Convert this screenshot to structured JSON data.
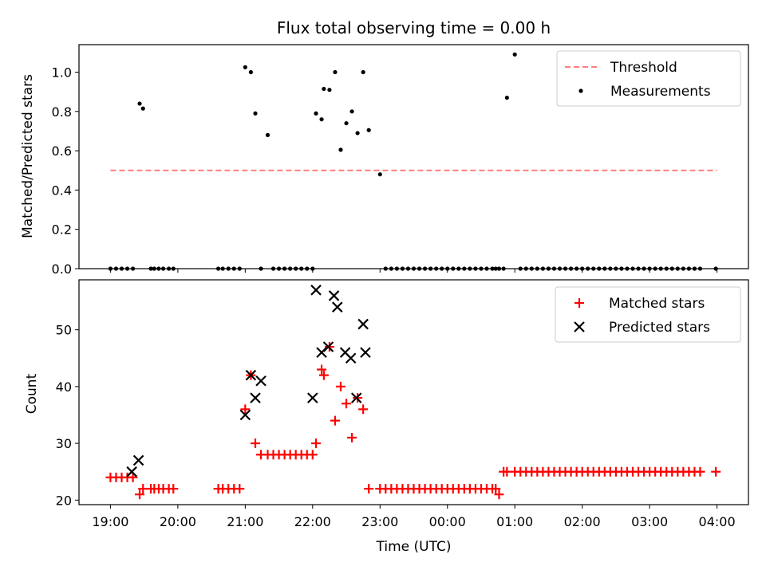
{
  "chart_data": [
    {
      "type": "scatter",
      "title": "Flux total observing time = 0.00 h",
      "xlabel": "",
      "ylabel": "Matched/Predicted stars",
      "ylim": [
        0,
        1.14
      ],
      "yticks": [
        "0.0",
        "0.2",
        "0.4",
        "0.6",
        "0.8",
        "1.0"
      ],
      "ytick_values": [
        0,
        0.2,
        0.4,
        0.6,
        0.8,
        1.0
      ],
      "legend_position": "top-right",
      "threshold": {
        "name": "Threshold",
        "value": 0.5,
        "x_start": 0,
        "x_end": 540,
        "color": "#ff7f7f"
      },
      "series": [
        {
          "name": "Measurements",
          "color": "#000000",
          "x": [
            0,
            5,
            10,
            15,
            20,
            26,
            29,
            36,
            39,
            43,
            47,
            52,
            56,
            96,
            100,
            105,
            110,
            115,
            120,
            125,
            129,
            134,
            140,
            145,
            150,
            155,
            160,
            165,
            170,
            175,
            180,
            183,
            188,
            190,
            195,
            200,
            205,
            210,
            215,
            220,
            225,
            230,
            240,
            245,
            250,
            255,
            260,
            265,
            270,
            275,
            280,
            285,
            290,
            295,
            300,
            305,
            310,
            315,
            320,
            325,
            330,
            335,
            340,
            343,
            346,
            350,
            353,
            360,
            365,
            370,
            375,
            380,
            385,
            390,
            395,
            400,
            405,
            410,
            415,
            420,
            425,
            430,
            435,
            440,
            445,
            450,
            455,
            460,
            465,
            470,
            475,
            480,
            485,
            490,
            495,
            500,
            505,
            510,
            515,
            520,
            525,
            539
          ],
          "y": [
            0,
            0,
            0,
            0,
            0,
            0.84,
            0.815,
            0,
            0,
            0,
            0,
            0,
            0,
            0,
            0,
            0,
            0,
            0,
            1.025,
            1.0,
            0.79,
            0,
            0.68,
            0,
            0,
            0,
            0,
            0,
            0,
            0,
            0,
            0.79,
            0.76,
            0.915,
            0.91,
            1.0,
            0.605,
            0.74,
            0.8,
            0.69,
            1.0,
            0.705,
            0.48,
            0,
            0,
            0,
            0,
            0,
            0,
            0,
            0,
            0,
            0,
            0,
            0,
            0,
            0,
            0,
            0,
            0,
            0,
            0,
            0,
            0,
            0,
            0,
            0.87,
            1.09,
            0,
            0,
            0,
            0,
            0,
            0,
            0,
            0,
            0,
            0,
            0,
            0,
            0,
            0,
            0,
            0,
            0,
            0,
            0,
            0,
            0,
            0,
            0,
            0,
            0,
            0,
            0,
            0,
            0,
            0,
            0,
            0,
            0,
            0
          ]
        }
      ]
    },
    {
      "type": "scatter",
      "title": "",
      "xlabel": "Time (UTC)",
      "ylabel": "Count",
      "ylim": [
        19.2,
        58.8
      ],
      "yticks": [
        "20",
        "30",
        "40",
        "50"
      ],
      "ytick_values": [
        20,
        30,
        40,
        50
      ],
      "xlim": [
        -28,
        568
      ],
      "xticks": [
        "19:00",
        "20:00",
        "21:00",
        "22:00",
        "23:00",
        "00:00",
        "01:00",
        "02:00",
        "03:00",
        "04:00"
      ],
      "xtick_values": [
        0,
        60,
        120,
        180,
        240,
        300,
        360,
        420,
        480,
        540
      ],
      "legend_position": "top-right",
      "series": [
        {
          "name": "Matched stars",
          "marker": "plus",
          "color": "#ff0000",
          "x": [
            0,
            5,
            10,
            15,
            20,
            26,
            29,
            36,
            39,
            43,
            47,
            52,
            56,
            96,
            100,
            105,
            110,
            115,
            120,
            125,
            129,
            134,
            140,
            145,
            150,
            155,
            160,
            165,
            170,
            175,
            180,
            183,
            188,
            190,
            195,
            200,
            205,
            210,
            215,
            220,
            225,
            230,
            240,
            245,
            250,
            255,
            260,
            265,
            270,
            275,
            280,
            285,
            290,
            295,
            300,
            305,
            310,
            315,
            320,
            325,
            330,
            335,
            340,
            343,
            346,
            350,
            353,
            360,
            365,
            370,
            375,
            380,
            385,
            390,
            395,
            400,
            405,
            410,
            415,
            420,
            425,
            430,
            435,
            440,
            445,
            450,
            455,
            460,
            465,
            470,
            475,
            480,
            485,
            490,
            495,
            500,
            505,
            510,
            515,
            520,
            525,
            539
          ],
          "y": [
            24,
            24,
            24,
            24,
            24,
            21,
            22,
            22,
            22,
            22,
            22,
            22,
            22,
            22,
            22,
            22,
            22,
            22,
            36,
            42,
            30,
            28,
            28,
            28,
            28,
            28,
            28,
            28,
            28,
            28,
            28,
            30,
            43,
            42,
            47,
            34,
            40,
            37,
            31,
            38,
            36,
            22,
            22,
            22,
            22,
            22,
            22,
            22,
            22,
            22,
            22,
            22,
            22,
            22,
            22,
            22,
            22,
            22,
            22,
            22,
            22,
            22,
            22,
            22,
            21,
            25,
            25,
            25,
            25,
            25,
            25,
            25,
            25,
            25,
            25,
            25,
            25,
            25,
            25,
            25,
            25,
            25,
            25,
            25,
            25,
            25,
            25,
            25,
            25,
            25,
            25,
            25,
            25,
            25,
            25,
            25,
            25,
            25,
            25,
            25,
            25,
            25
          ]
        },
        {
          "name": "Predicted stars",
          "marker": "cross",
          "color": "#000000",
          "x": [
            19,
            25,
            120,
            125,
            129,
            134,
            180,
            183,
            188,
            194,
            199,
            202,
            209,
            214,
            219,
            225
          ],
          "y": [
            25,
            27,
            35,
            42,
            38,
            41,
            38,
            57,
            46,
            47,
            56,
            54,
            46,
            45,
            38,
            51
          ]
        }
      ]
    },
    {
      "type": "scatter",
      "note_series": "extra",
      "series": [
        {
          "name": "",
          "x": [
            227
          ],
          "y": [
            46
          ]
        }
      ]
    }
  ]
}
